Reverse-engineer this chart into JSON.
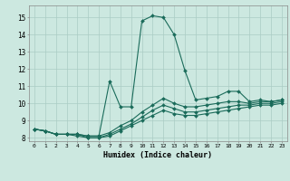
{
  "xlabel": "Humidex (Indice chaleur)",
  "xlim": [
    -0.5,
    23.5
  ],
  "ylim": [
    7.8,
    15.7
  ],
  "yticks": [
    8,
    9,
    10,
    11,
    12,
    13,
    14,
    15
  ],
  "xticks": [
    0,
    1,
    2,
    3,
    4,
    5,
    6,
    7,
    8,
    9,
    10,
    11,
    12,
    13,
    14,
    15,
    16,
    17,
    18,
    19,
    20,
    21,
    22,
    23
  ],
  "background_color": "#cce8e0",
  "grid_color": "#aaccc4",
  "line_color": "#1a6b5a",
  "lines": [
    [
      8.5,
      8.4,
      8.2,
      8.2,
      8.2,
      8.1,
      8.1,
      11.3,
      9.8,
      9.8,
      14.8,
      15.1,
      15.0,
      14.0,
      11.9,
      10.2,
      10.3,
      10.4,
      10.7,
      10.7,
      10.1,
      10.2,
      10.1,
      10.2
    ],
    [
      8.5,
      8.4,
      8.2,
      8.2,
      8.2,
      8.1,
      8.1,
      8.3,
      8.7,
      9.0,
      9.5,
      9.9,
      10.3,
      10.0,
      9.8,
      9.8,
      9.9,
      10.0,
      10.1,
      10.1,
      10.0,
      10.1,
      10.1,
      10.2
    ],
    [
      8.5,
      8.4,
      8.2,
      8.2,
      8.2,
      8.0,
      8.0,
      8.2,
      8.5,
      8.8,
      9.2,
      9.6,
      9.9,
      9.7,
      9.5,
      9.5,
      9.6,
      9.7,
      9.8,
      9.9,
      9.9,
      10.0,
      10.0,
      10.1
    ],
    [
      8.5,
      8.4,
      8.2,
      8.2,
      8.1,
      8.0,
      8.0,
      8.1,
      8.4,
      8.7,
      9.0,
      9.3,
      9.6,
      9.4,
      9.3,
      9.3,
      9.4,
      9.5,
      9.6,
      9.7,
      9.8,
      9.9,
      9.9,
      10.0
    ]
  ]
}
